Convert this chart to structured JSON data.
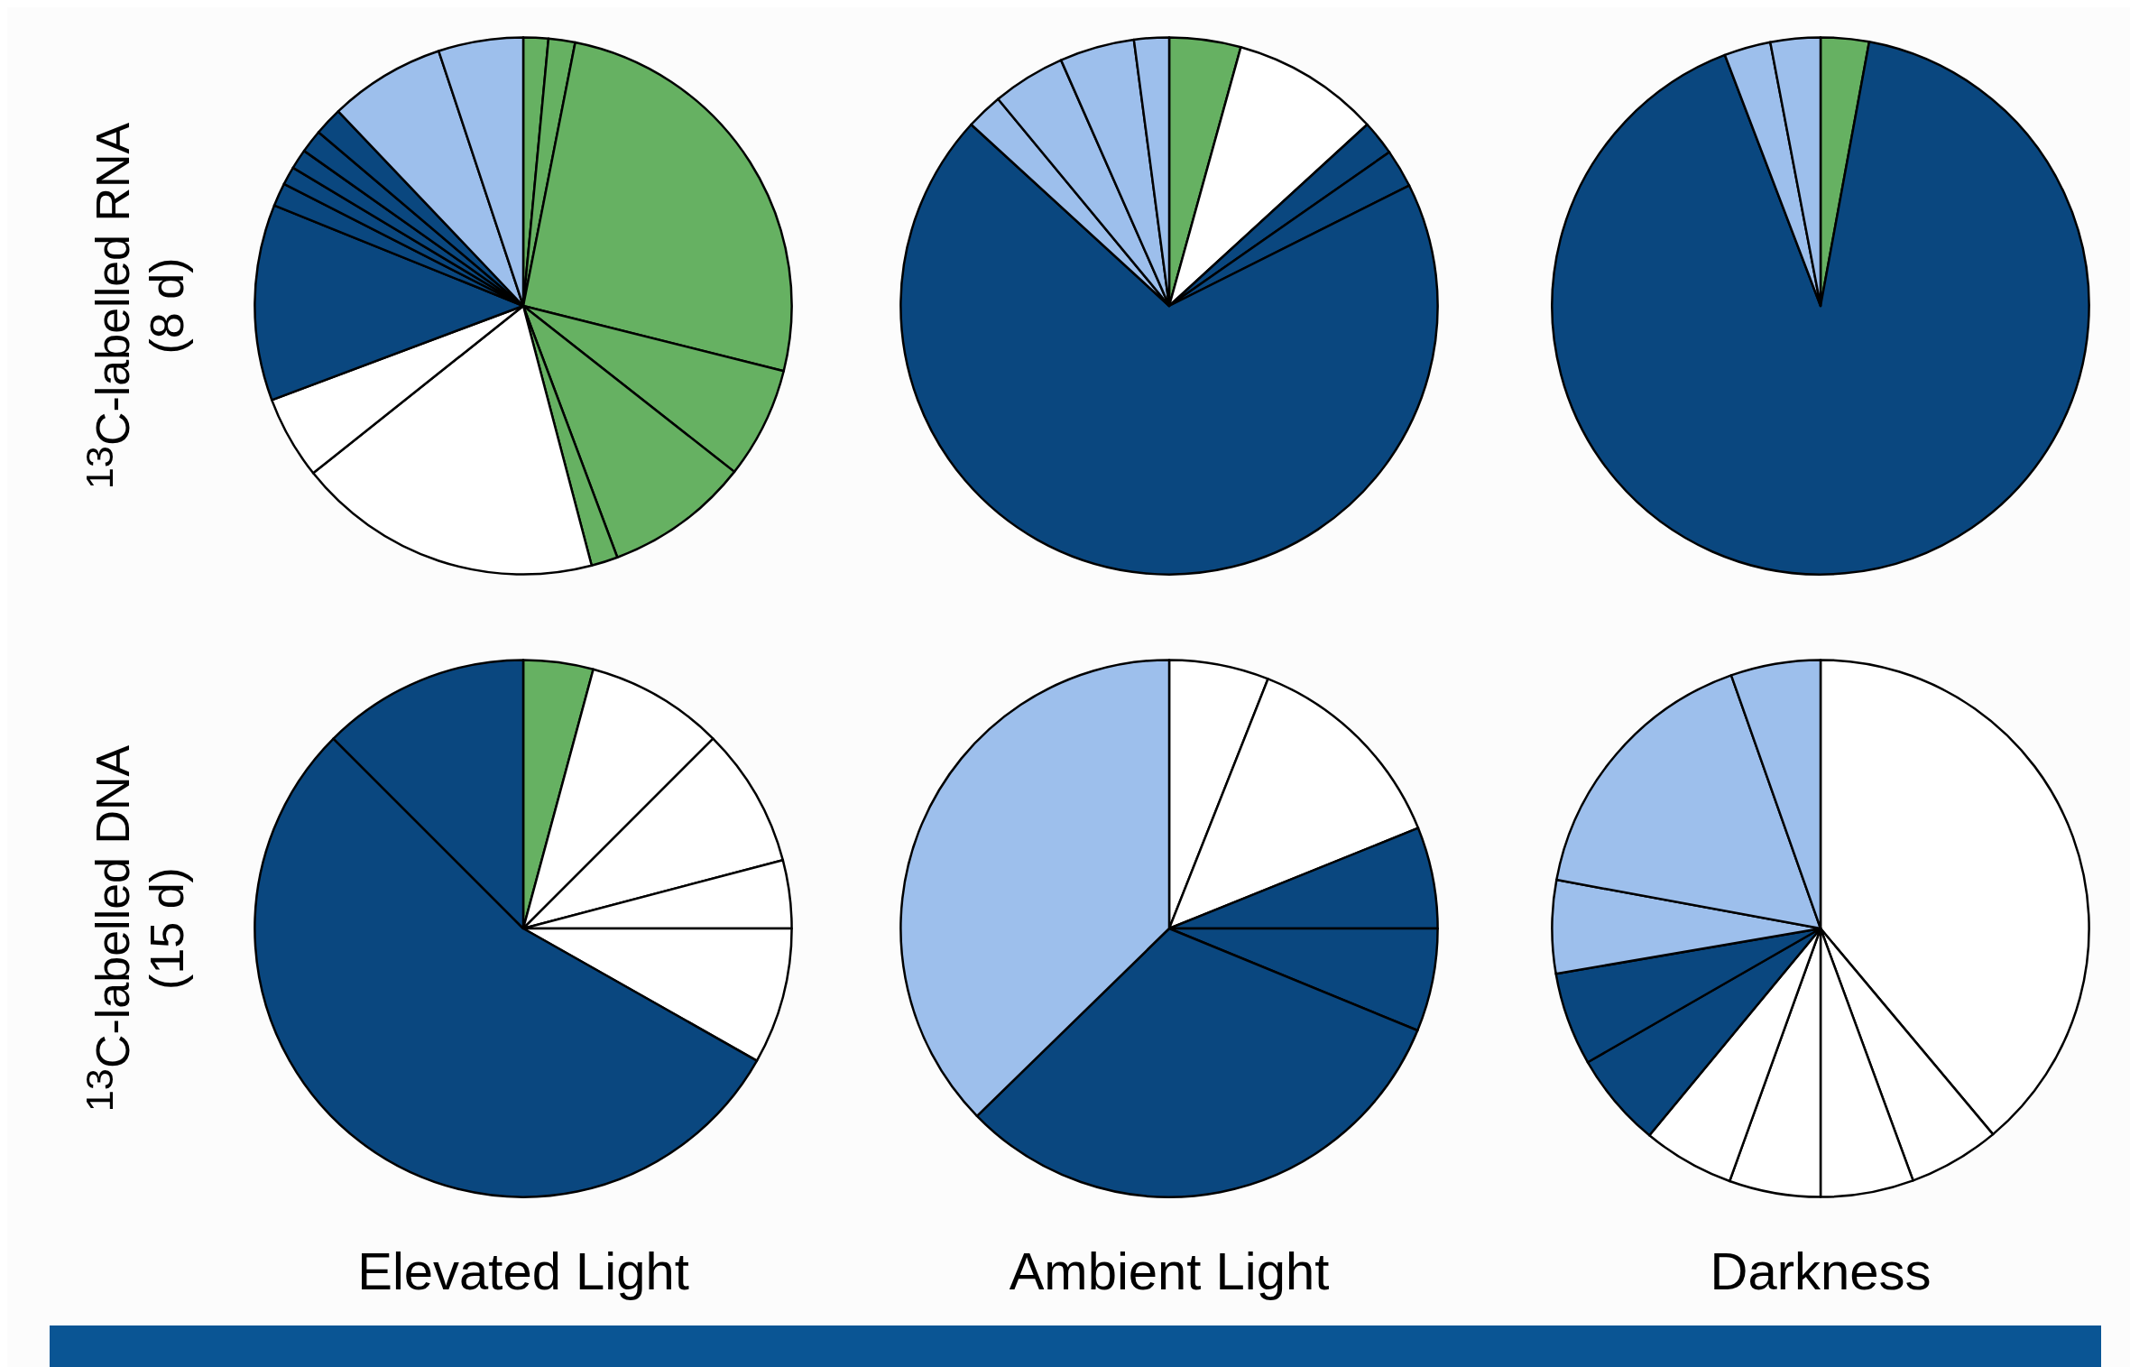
{
  "chart_data": [
    {
      "type": "pie",
      "ylabel": "$^{13}$C-labelled RNA\n(8 d)",
      "categories": [
        null,
        null,
        null,
        null,
        null,
        null,
        null,
        null,
        null,
        null,
        null,
        null,
        null,
        null,
        null,
        null
      ],
      "values": [
        1.5,
        1.6,
        25.8,
        6.7,
        8.7,
        1.6,
        18.4,
        5,
        11.8,
        1.4,
        1.1,
        1.2,
        1.4,
        1.7,
        7,
        5.1
      ],
      "colors": [
        "#66b162",
        "#66b162",
        "#66b162",
        "#66b162",
        "#66b162",
        "#66b162",
        "#ffffff",
        "#ffffff",
        "#0a477f",
        "#0a477f",
        "#0a477f",
        "#0a477f",
        "#0a477f",
        "#0a477f",
        "#9dbfec",
        "#9dbfec"
      ]
    },
    {
      "type": "pie",
      "categories": [
        null,
        null,
        null,
        null,
        null,
        null,
        null,
        null,
        null
      ],
      "values": [
        4.3,
        8.9,
        2.1,
        2.3,
        69.2,
        2.2,
        4.4,
        4.5,
        2.1
      ],
      "colors": [
        "#66b162",
        "#ffffff",
        "#0a477f",
        "#0a477f",
        "#0a477f",
        "#9dbfec",
        "#9dbfec",
        "#9dbfec",
        "#9dbfec"
      ]
    },
    {
      "type": "pie",
      "categories": [
        null,
        null,
        null,
        null
      ],
      "values": [
        2.9,
        91.3,
        2.8,
        3
      ],
      "colors": [
        "#66b162",
        "#0a477f",
        "#9dbfec",
        "#9dbfec"
      ]
    },
    {
      "type": "pie",
      "ylabel": "$^{13}$C-labelled DNA\n(15 d)",
      "xlabel": "Elevated Light",
      "categories": [
        null,
        null,
        null,
        null,
        null,
        null,
        null
      ],
      "values": [
        4.2,
        8.3,
        8.4,
        4.1,
        8.2,
        54.3,
        12.5
      ],
      "colors": [
        "#66b162",
        "#ffffff",
        "#ffffff",
        "#ffffff",
        "#ffffff",
        "#0a477f",
        "#0a477f"
      ]
    },
    {
      "type": "pie",
      "xlabel": "Ambient Light",
      "categories": [
        null,
        null,
        null,
        null,
        null,
        null
      ],
      "values": [
        6,
        12.9,
        6.1,
        6.2,
        31.5,
        37.3
      ],
      "colors": [
        "#ffffff",
        "#ffffff",
        "#0a477f",
        "#0a477f",
        "#0a477f",
        "#9dbfec"
      ]
    },
    {
      "type": "pie",
      "xlabel": "Darkness",
      "categories": [
        null,
        null,
        null,
        null,
        null,
        null,
        null,
        null,
        null,
        null
      ],
      "values": [
        38.9,
        5.5,
        5.6,
        5.5,
        5.5,
        5.7,
        5.6,
        5.6,
        16.7,
        5.4
      ],
      "colors": [
        "#ffffff",
        "#ffffff",
        "#ffffff",
        "#ffffff",
        "#ffffff",
        "#0a477f",
        "#0a477f",
        "#9dbfec",
        "#9dbfec",
        "#9dbfec"
      ]
    }
  ]
}
